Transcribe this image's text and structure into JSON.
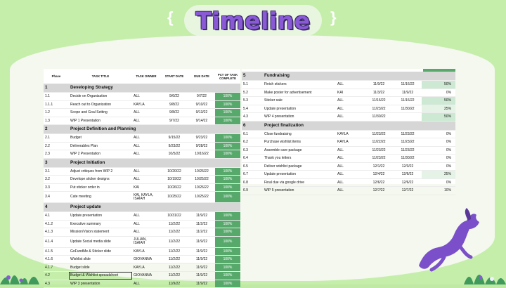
{
  "title": "Timeline",
  "colors": {
    "background": "#c5eeab",
    "title": "#8a5ad6",
    "pct_full": "#57a86b",
    "pct_half": "#cde9d3",
    "section": "#d6d6d6"
  },
  "left_table": {
    "headers": [
      "Phase",
      "TASK TITLE",
      "TASK OWNER",
      "START DATE",
      "DUE DATE",
      "PCT OF TASK COMPLETE"
    ],
    "rows": [
      {
        "type": "section",
        "phase": "1",
        "title": "Developing Strategy"
      },
      {
        "phase": "1.1",
        "title": "Decide on Organization",
        "owner": "ALL",
        "start": "9/6/22",
        "due": "9/7/22",
        "pct": "100%"
      },
      {
        "phase": "1.1.1",
        "title": "Reach out to Organization",
        "owner": "KAYLA",
        "start": "9/8/22",
        "due": "9/10/22",
        "pct": "100%"
      },
      {
        "phase": "1.2",
        "title": "Scope and Goal Setting",
        "owner": "ALL",
        "start": "9/8/22",
        "due": "9/13/22",
        "pct": "100%"
      },
      {
        "phase": "1.3",
        "title": "WIP 1 Presentation",
        "owner": "ALL",
        "start": "9/7/22",
        "due": "9/14/22",
        "pct": "100%"
      },
      {
        "type": "section",
        "phase": "2",
        "title": "Project Definition and Planning"
      },
      {
        "phase": "2.1",
        "title": "Budget",
        "owner": "ALL",
        "start": "9/15/22",
        "due": "9/23/22",
        "pct": "100%"
      },
      {
        "phase": "2.2",
        "title": "Deliverables Plan",
        "owner": "ALL",
        "start": "9/23/22",
        "due": "9/28/22",
        "pct": "100%"
      },
      {
        "phase": "2.3",
        "title": "WIP 2 Presentation",
        "owner": "ALL",
        "start": "10/5/22",
        "due": "10/16/22",
        "pct": "100%"
      },
      {
        "type": "section",
        "phase": "3",
        "title": "Project Initiation"
      },
      {
        "phase": "3.1",
        "title": "Adjust critiques from WIP 2",
        "owner": "ALL",
        "start": "10/20/22",
        "due": "10/26/22",
        "pct": "100%"
      },
      {
        "phase": "3.2",
        "title": "Develope sticker designs",
        "owner": "ALL",
        "start": "10/19/22",
        "due": "10/25/22",
        "pct": "100%"
      },
      {
        "phase": "3.3",
        "title": "Put sticker order in",
        "owner": "KAI",
        "start": "10/26/22",
        "due": "10/26/22",
        "pct": "100%"
      },
      {
        "phase": "3.4",
        "title": "Cate meeting",
        "owner": "KAI, KAYLA, ISAIAH",
        "start": "10/25/22",
        "due": "10/25/22",
        "pct": "100%",
        "tall": true
      },
      {
        "type": "section",
        "phase": "4",
        "title": "Project update"
      },
      {
        "phase": "4.1",
        "title": "Update presentation",
        "owner": "ALL",
        "start": "10/31/22",
        "due": "11/9/22",
        "pct": "100%"
      },
      {
        "phase": "4.1.2",
        "title": "Executive summary",
        "owner": "ALL",
        "start": "11/2/22",
        "due": "11/2/22",
        "pct": "100%"
      },
      {
        "phase": "4.1.3",
        "title": "Mission/Vision statement",
        "owner": "ALL",
        "start": "11/2/22",
        "due": "11/2/22",
        "pct": "100%"
      },
      {
        "phase": "4.1.4",
        "title": "Update Social media slide",
        "owner": "JULIAN, ISAIAH",
        "start": "11/2/22",
        "due": "11/9/22",
        "pct": "100%",
        "tall": true
      },
      {
        "phase": "4.1.5",
        "title": "GoFundMe & Sticker slide",
        "owner": "KAYLA",
        "start": "11/2/22",
        "due": "11/9/22",
        "pct": "100%"
      },
      {
        "phase": "4.1.6",
        "title": "Wishlist slide",
        "owner": "GIOVANNA",
        "start": "11/2/22",
        "due": "11/9/22",
        "pct": "100%"
      },
      {
        "phase": "4.1.7",
        "title": "Budget slide",
        "owner": "KAYLA",
        "start": "11/2/22",
        "due": "11/9/22",
        "pct": "100%"
      },
      {
        "phase": "4.2",
        "title": "Budget & Wishlist spreadsheet",
        "owner": "GIOVANNA",
        "start": "11/2/22",
        "due": "11/9/22",
        "pct": "100%",
        "outlined": true
      },
      {
        "phase": "4.3",
        "title": "WIP 3 presentation",
        "owner": "ALL",
        "start": "11/9/22",
        "due": "11/9/22",
        "pct": "100%"
      }
    ]
  },
  "right_table": {
    "rows": [
      {
        "type": "section",
        "phase": "5",
        "title": "Fundraising"
      },
      {
        "phase": "5.1",
        "title": "Finish stickers",
        "owner": "ALL",
        "start": "11/9/22",
        "due": "11/16/22",
        "pct": "50%",
        "tone": "g50"
      },
      {
        "phase": "5.2",
        "title": "Make poster for advertisement",
        "owner": "KAI",
        "start": "11/3/22",
        "due": "11/9/22",
        "pct": "0%",
        "tone": ""
      },
      {
        "phase": "5.3",
        "title": "Sticker sale",
        "owner": "ALL",
        "start": "11/16/22",
        "due": "11/16/22",
        "pct": "50%",
        "tone": "g50"
      },
      {
        "phase": "5.4",
        "title": "Update presentation",
        "owner": "ALL",
        "start": "11/23/22",
        "due": "11/30/22",
        "pct": "25%",
        "tone": "g25"
      },
      {
        "phase": "4.3",
        "title": "WIP 4 presentation",
        "owner": "ALL",
        "start": "11/30/22",
        "due": "",
        "pct": "50%",
        "tone": "g50"
      },
      {
        "type": "section",
        "phase": "6",
        "title": "Project finalization"
      },
      {
        "phase": "6.1",
        "title": "Close fundraising",
        "owner": "KAYLA",
        "start": "11/23/22",
        "due": "11/23/22",
        "pct": "0%",
        "tone": ""
      },
      {
        "phase": "6.2",
        "title": "Purchase wishlist items",
        "owner": "KAYLA",
        "start": "11/22/22",
        "due": "11/23/22",
        "pct": "0%",
        "tone": ""
      },
      {
        "phase": "6.3",
        "title": "Assemble care package",
        "owner": "ALL",
        "start": "11/23/22",
        "due": "11/23/22",
        "pct": "0%",
        "tone": ""
      },
      {
        "phase": "6.4",
        "title": "Thank you letters",
        "owner": "ALL",
        "start": "11/23/22",
        "due": "11/30/22",
        "pct": "0%",
        "tone": ""
      },
      {
        "phase": "6.5",
        "title": "Deliver wishlist package",
        "owner": "ALL",
        "start": "12/1/22",
        "due": "12/3/22",
        "pct": "0%",
        "tone": ""
      },
      {
        "phase": "6.7",
        "title": "Update presentation",
        "owner": "ALL",
        "start": "12/4/22",
        "due": "12/6/22",
        "pct": "25%",
        "tone": "g25"
      },
      {
        "phase": "6.8",
        "title": "Final due via google drive",
        "owner": "ALL",
        "start": "12/6/22",
        "due": "12/6/22",
        "pct": "0%",
        "tone": ""
      },
      {
        "phase": "6.9",
        "title": "WIP 5 presentation",
        "owner": "ALL",
        "start": "12/7/22",
        "due": "12/7/22",
        "pct": "10%",
        "tone": ""
      }
    ]
  }
}
